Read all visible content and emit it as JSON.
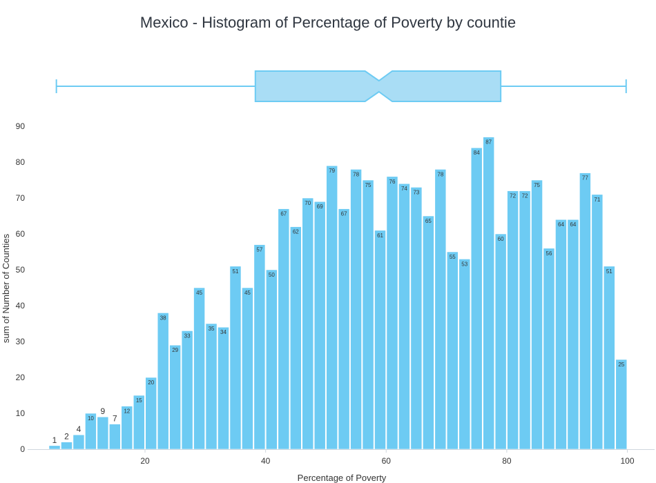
{
  "chart_data": {
    "type": "bar",
    "title": "Mexico - Histogram of Percentage of Poverty by countie",
    "xlabel": "Percentage of Poverty",
    "ylabel": "sum of Number of Counties",
    "xlim": [
      3.5,
      100
    ],
    "ylim": [
      0,
      90
    ],
    "x_ticks": [
      "20",
      "40",
      "60",
      "80",
      "100"
    ],
    "y_ticks": [
      "0",
      "10",
      "20",
      "30",
      "40",
      "50",
      "60",
      "70",
      "80",
      "90"
    ],
    "bin_width": 2,
    "bin_start": 4,
    "values": [
      1,
      2,
      4,
      10,
      9,
      7,
      12,
      15,
      20,
      38,
      29,
      33,
      45,
      35,
      34,
      51,
      45,
      57,
      50,
      67,
      62,
      70,
      69,
      79,
      67,
      78,
      75,
      61,
      76,
      74,
      73,
      65,
      78,
      55,
      53,
      84,
      87,
      60,
      72,
      72,
      75,
      56,
      64,
      64,
      77,
      71,
      51,
      25
    ],
    "boxplot": {
      "min": 5.3,
      "q1": 38.3,
      "median": 58.8,
      "q3": 79.0,
      "max": 99.8,
      "notch_low": 56.5,
      "notch_high": 61.0
    },
    "bar_color": "#6dcbf3",
    "bar_stroke": "#ffffff",
    "box_fill": "#a9ddf5",
    "box_stroke": "#6dcbf3",
    "grid": false
  }
}
